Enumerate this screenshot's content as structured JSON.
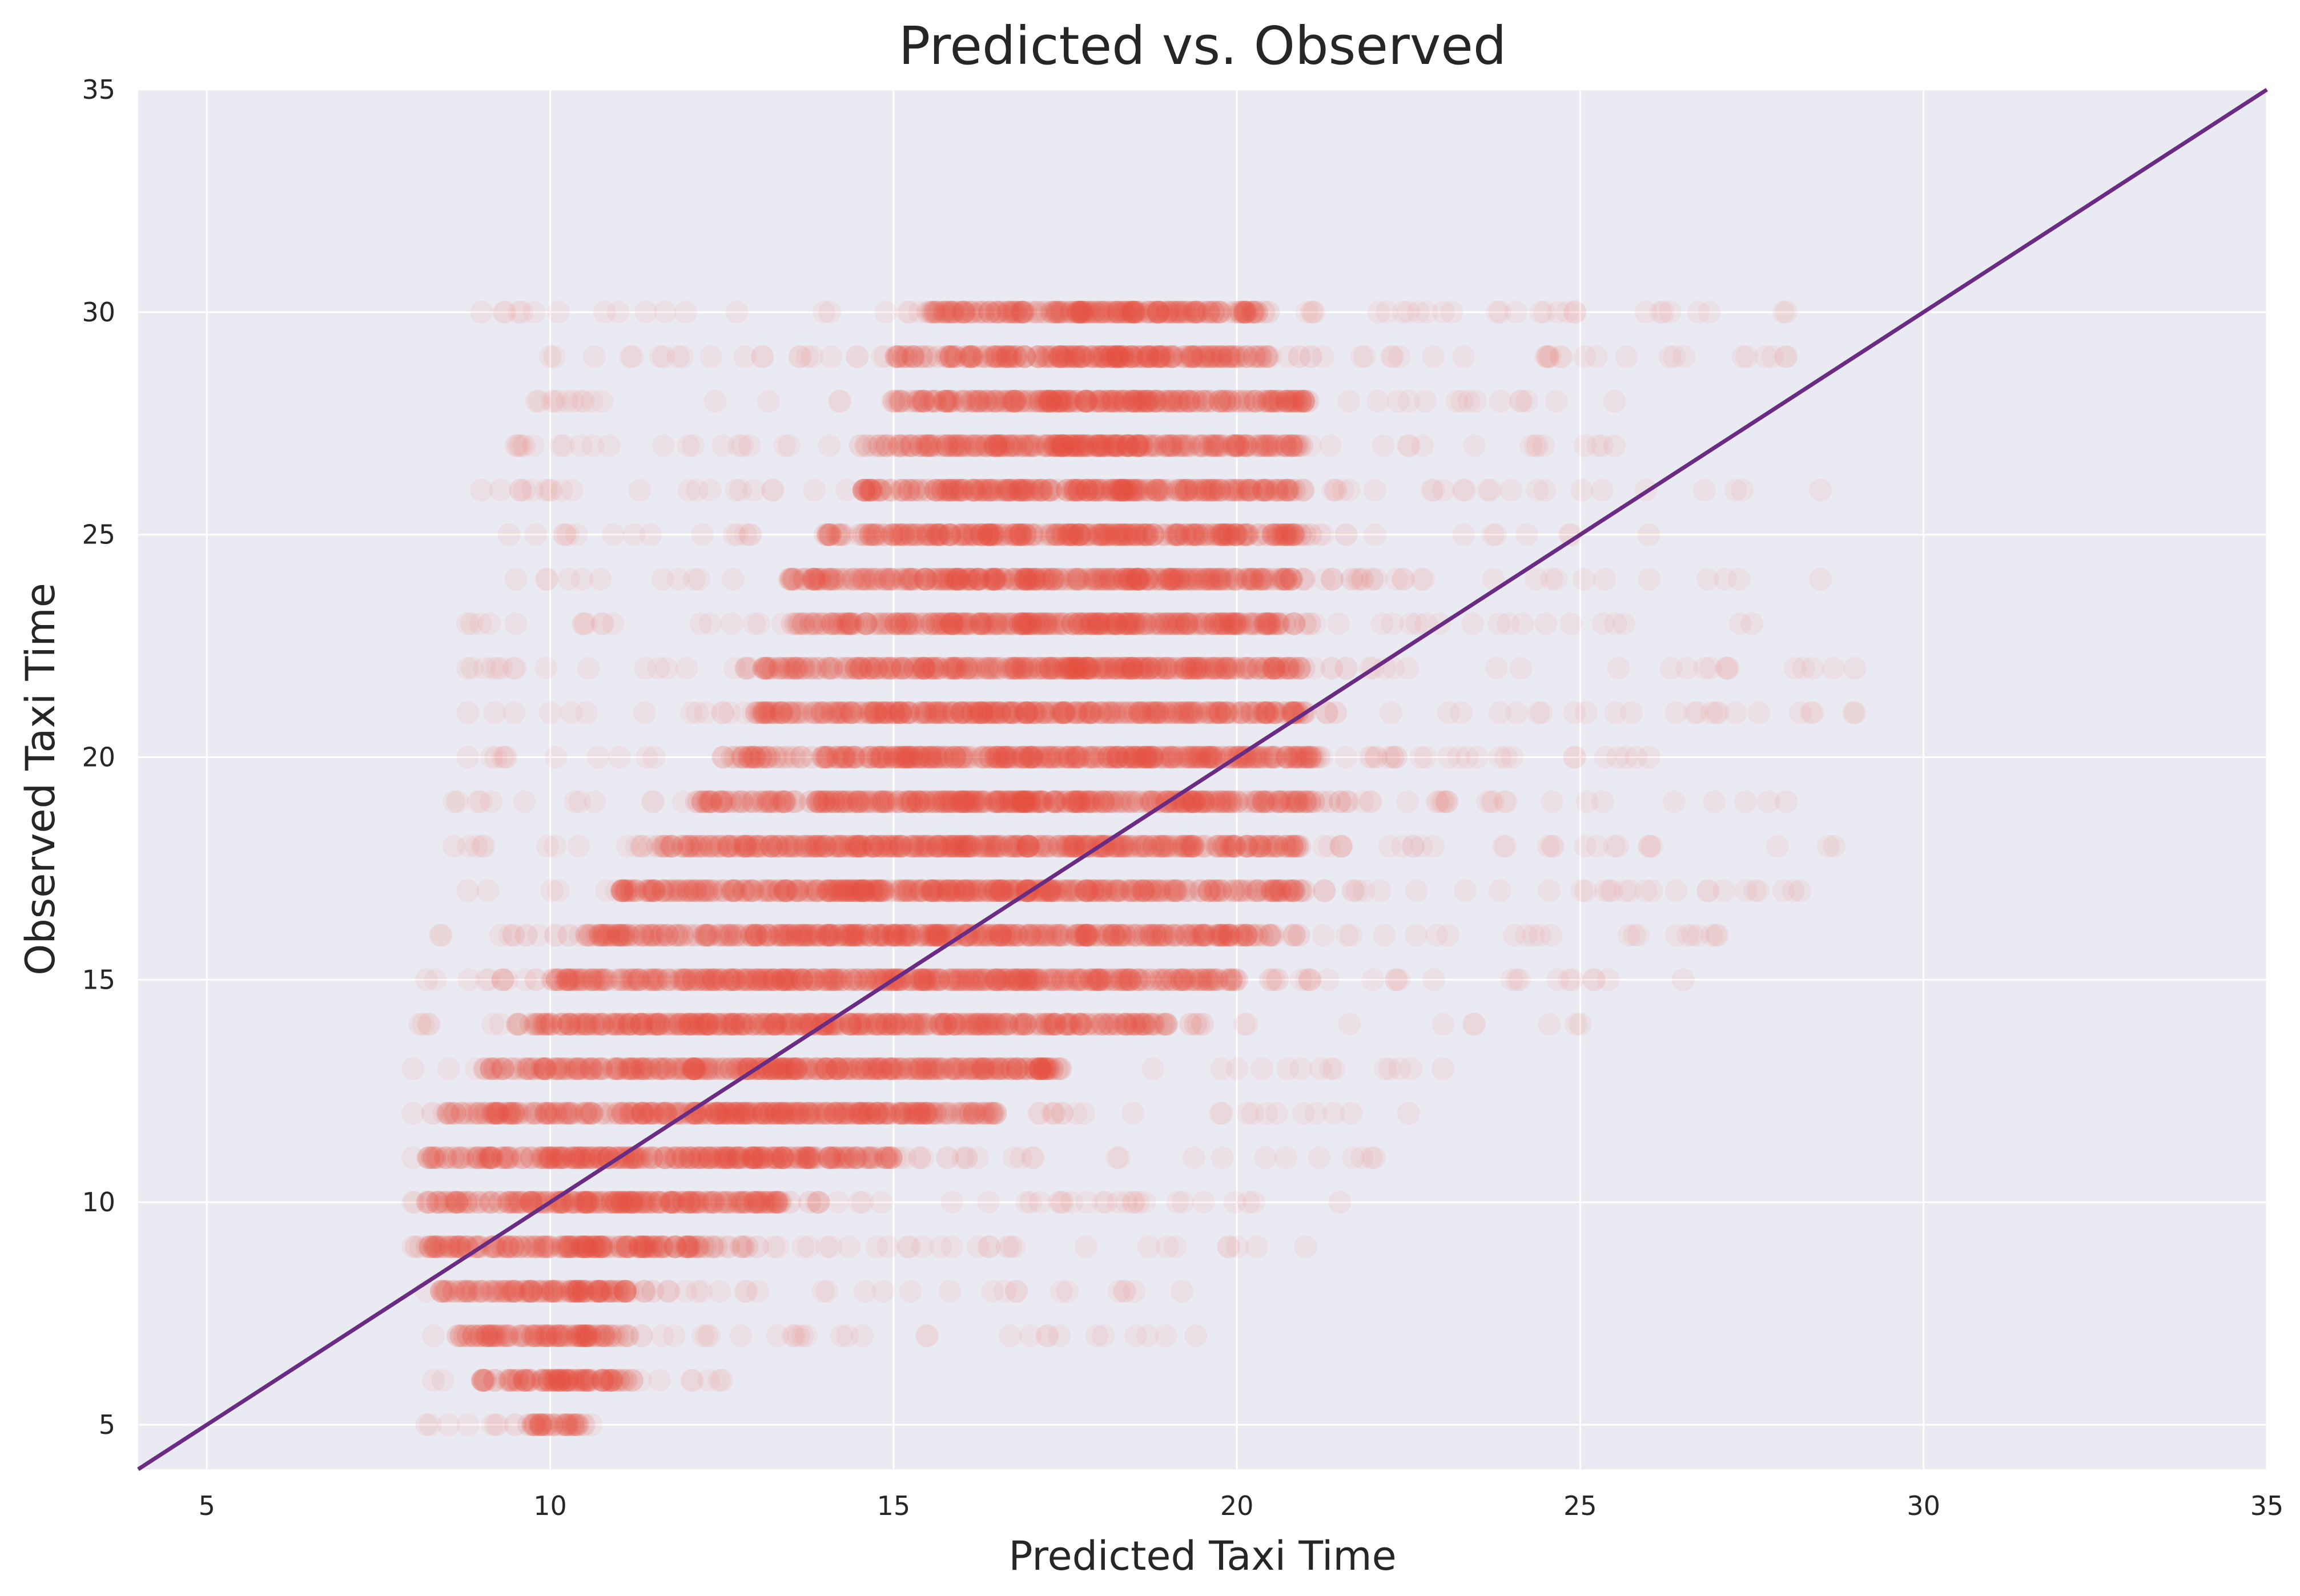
{
  "chart_data": {
    "type": "scatter",
    "title": "Predicted vs. Observed",
    "xlabel": "Predicted Taxi Time",
    "ylabel": "Observed Taxi Time",
    "xlim": [
      4,
      35
    ],
    "ylim": [
      4,
      35
    ],
    "xticks": [
      5,
      10,
      15,
      20,
      25,
      30,
      35
    ],
    "yticks": [
      5,
      10,
      15,
      20,
      25,
      30,
      35
    ],
    "grid": true,
    "background_color": "#eaeaf2",
    "grid_color": "#ffffff",
    "point_color": "#e8503a",
    "point_alpha": 0.07,
    "line_color": "#6a2c82",
    "reference_line": {
      "x": [
        4,
        35
      ],
      "y": [
        4,
        35
      ]
    },
    "series": [
      {
        "rows": [
          {
            "y": 5,
            "x": [
              8.2,
              10.6
            ],
            "center": 9.8,
            "dense": [
              9.7,
              10.5
            ]
          },
          {
            "y": 6,
            "x": [
              8.3,
              12.5
            ],
            "center": 10.2,
            "dense": [
              9.0,
              11.2
            ]
          },
          {
            "y": 7,
            "x": [
              8.3,
              19.4
            ],
            "center": 10.2,
            "dense": [
              8.6,
              11.0
            ]
          },
          {
            "y": 8,
            "x": [
              8.2,
              19.2
            ],
            "center": 10.2,
            "dense": [
              8.4,
              11.2
            ]
          },
          {
            "y": 9,
            "x": [
              8.0,
              21.0
            ],
            "center": 10.8,
            "dense": [
              8.2,
              12.5
            ]
          },
          {
            "y": 10,
            "x": [
              8.0,
              21.5
            ],
            "center": 11.5,
            "dense": [
              8.2,
              13.5
            ]
          },
          {
            "y": 11,
            "x": [
              8.0,
              22.0
            ],
            "center": 12.2,
            "dense": [
              8.2,
              15.0
            ]
          },
          {
            "y": 12,
            "x": [
              8.0,
              22.5
            ],
            "center": 12.8,
            "dense": [
              8.5,
              16.5
            ]
          },
          {
            "y": 13,
            "x": [
              8.0,
              23.0
            ],
            "center": 13.5,
            "dense": [
              9.0,
              17.5
            ]
          },
          {
            "y": 14,
            "x": [
              8.1,
              25.0
            ],
            "center": 14.2,
            "dense": [
              9.5,
              19.0
            ]
          },
          {
            "y": 15,
            "x": [
              8.2,
              26.5
            ],
            "center": 15.0,
            "dense": [
              10.0,
              20.0
            ]
          },
          {
            "y": 16,
            "x": [
              8.4,
              27.0
            ],
            "center": 15.5,
            "dense": [
              10.5,
              20.5
            ]
          },
          {
            "y": 17,
            "x": [
              8.8,
              28.2
            ],
            "center": 16.2,
            "dense": [
              11.0,
              21.0
            ]
          },
          {
            "y": 18,
            "x": [
              8.6,
              28.7
            ],
            "center": 16.8,
            "dense": [
              11.5,
              21.0
            ]
          },
          {
            "y": 19,
            "x": [
              8.6,
              28.0
            ],
            "center": 17.2,
            "dense": [
              12.0,
              21.2
            ]
          },
          {
            "y": 20,
            "x": [
              8.8,
              26.0
            ],
            "center": 17.5,
            "dense": [
              12.5,
              21.2
            ]
          },
          {
            "y": 21,
            "x": [
              8.8,
              29.0
            ],
            "center": 17.5,
            "dense": [
              13.0,
              21.0
            ]
          },
          {
            "y": 22,
            "x": [
              8.8,
              29.0
            ],
            "center": 17.5,
            "dense": [
              13.0,
              21.0
            ]
          },
          {
            "y": 23,
            "x": [
              8.8,
              27.5
            ],
            "center": 17.8,
            "dense": [
              13.5,
              21.0
            ]
          },
          {
            "y": 24,
            "x": [
              9.5,
              28.5
            ],
            "center": 17.8,
            "dense": [
              13.5,
              21.0
            ]
          },
          {
            "y": 25,
            "x": [
              9.4,
              26.0
            ],
            "center": 18.0,
            "dense": [
              14.0,
              21.0
            ]
          },
          {
            "y": 26,
            "x": [
              9.0,
              28.5
            ],
            "center": 18.0,
            "dense": [
              14.5,
              21.0
            ]
          },
          {
            "y": 27,
            "x": [
              9.5,
              25.5
            ],
            "center": 18.0,
            "dense": [
              14.5,
              21.0
            ]
          },
          {
            "y": 28,
            "x": [
              9.8,
              25.5
            ],
            "center": 18.0,
            "dense": [
              15.0,
              21.0
            ]
          },
          {
            "y": 29,
            "x": [
              10.0,
              28.0
            ],
            "center": 18.0,
            "dense": [
              15.0,
              20.5
            ]
          },
          {
            "y": 30,
            "x": [
              9.0,
              28.0
            ],
            "center": 18.0,
            "dense": [
              15.5,
              20.5
            ]
          }
        ]
      }
    ]
  }
}
